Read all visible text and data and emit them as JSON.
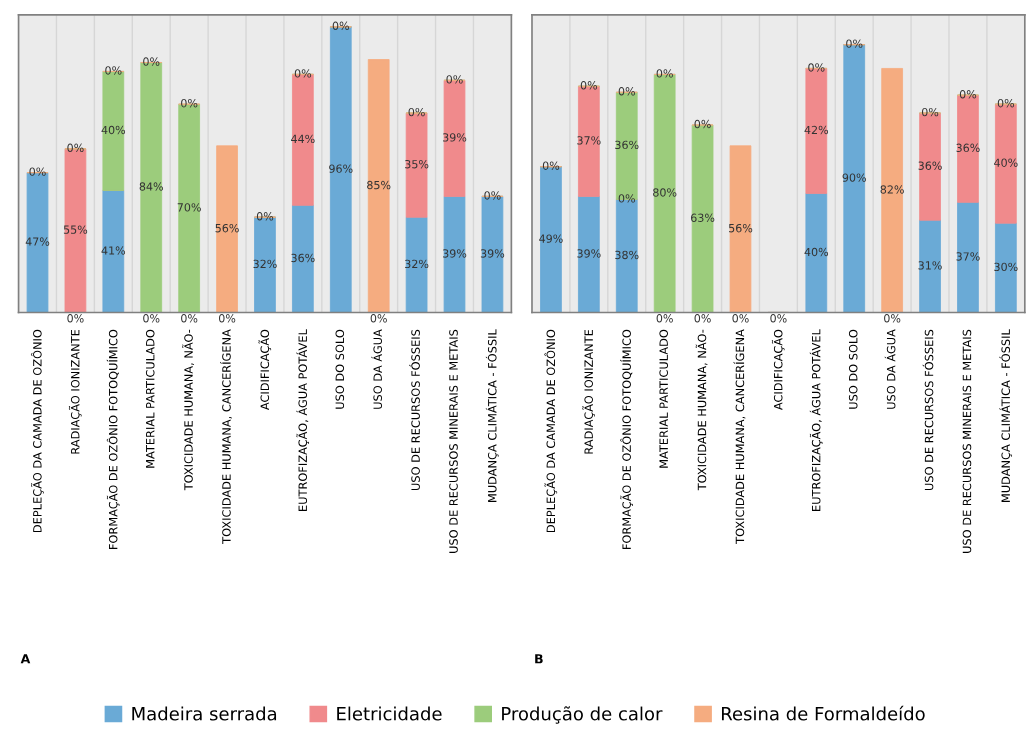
{
  "chart_data": [
    {
      "type": "bar",
      "stacked": true,
      "categories": [
        "DEPLEÇÃO DA CAMADA DE OZÔNIO",
        "RADIAÇÃO IONIZANTE",
        "FORMAÇÃO DE OZÔNIO FOTOQUÍMICO",
        "MATERIAL PARTICULADO",
        "TOXICIDADE HUMANA, NÃO-",
        "TOXICIDADE HUMANA, CANCERÍGENA",
        "ACIDIFICAÇÃO",
        "EUTROFIZAÇÃO, ÁGUA POTÁVEL",
        "USO DO SOLO",
        "USO DA ÁGUA",
        "USO DE RECURSOS FÓSSEIS",
        "USO DE RECURSOS MINERAIS E METAIS",
        "MUDANÇA CLIMÁTICA - FÓSSIL"
      ],
      "series": [
        {
          "name": "Madeira serrada",
          "color": "#6aaad6",
          "values": [
            47,
            0,
            41,
            0,
            0,
            0,
            32,
            36,
            96,
            0,
            32,
            39,
            39
          ],
          "value_labels": [
            "47%",
            "0%",
            "41%",
            "0%",
            "0%",
            "0%",
            "32%",
            "36%",
            "96%",
            "0%",
            "32%",
            "39%",
            "39%"
          ]
        },
        {
          "name": "Eletricidade",
          "color": "#f08a8c",
          "values": [
            0,
            55,
            0,
            0,
            0,
            0,
            0,
            44,
            0,
            0,
            35,
            39,
            0
          ],
          "value_labels": [
            null,
            "55%",
            null,
            null,
            null,
            null,
            null,
            "44%",
            null,
            null,
            "35%",
            "39%",
            null
          ]
        },
        {
          "name": "Produção de calor",
          "color": "#9ccc7c",
          "values": [
            0,
            0,
            40,
            84,
            70,
            0,
            0,
            0,
            0,
            0,
            0,
            0,
            0
          ],
          "value_labels": [
            null,
            null,
            "40%",
            "84%",
            "70%",
            null,
            null,
            null,
            null,
            null,
            null,
            null,
            null
          ]
        },
        {
          "name": "Resina de Formaldeído",
          "color": "#f5ac80",
          "values": [
            0,
            0,
            0,
            0,
            0,
            56,
            0,
            0,
            0,
            85,
            0,
            0,
            0
          ],
          "value_labels": [
            "0%",
            "0%",
            "0%",
            "0%",
            "0%",
            "56%",
            "0%",
            "0%",
            "0%",
            "85%",
            "0%",
            "0%",
            "0%"
          ]
        }
      ],
      "ylim": [
        0,
        100
      ],
      "tick_labels": "x",
      "grid": "x",
      "legend": "bottom",
      "annotations": [
        "A"
      ]
    },
    {
      "type": "bar",
      "stacked": true,
      "categories": [
        "DEPLEÇÃO DA CAMADA DE OZÔNIO",
        "RADIAÇÃO IONIZANTE",
        "FORMAÇÃO DE OZÔNIO FOTOQUÍMICO",
        "MATERIAL PARTICULADO",
        "TOXICIDADE HUMANA, NÃO-",
        "TOXICIDADE HUMANA, CANCERÍGENA",
        "ACIDIFICAÇÃO",
        "EUTROFIZAÇÃO, ÁGUA POTÁVEL",
        "USO DO SOLO",
        "USO DA ÁGUA",
        "USO DE RECURSOS FÓSSEIS",
        "USO DE RECURSOS MINERAIS E METAIS",
        "MUDANÇA CLIMÁTICA - FÓSSIL"
      ],
      "series": [
        {
          "color": "#6aaad6",
          "values": [
            49,
            39,
            38,
            0,
            0,
            0,
            0,
            40,
            90,
            0,
            31,
            37,
            30
          ],
          "value_labels": [
            "49%",
            "39%",
            "38%",
            "0%",
            "0%",
            "0%",
            "0%",
            "40%",
            "90%",
            "0%",
            "31%",
            "37%",
            "30%"
          ]
        },
        {
          "color": "#f08a8c",
          "values": [
            0,
            37,
            0,
            0,
            0,
            0,
            0,
            42,
            0,
            0,
            36,
            36,
            40
          ],
          "value_labels": [
            null,
            "37%",
            "0%",
            null,
            null,
            null,
            null,
            "42%",
            null,
            null,
            "36%",
            "36%",
            "40%"
          ]
        },
        {
          "color": "#9ccc7c",
          "values": [
            0,
            0,
            36,
            80,
            63,
            0,
            0,
            0,
            0,
            0,
            0,
            0,
            0
          ],
          "value_labels": [
            null,
            null,
            "36%",
            "80%",
            "63%",
            null,
            null,
            null,
            null,
            null,
            null,
            null,
            null
          ]
        },
        {
          "color": "#f5ac80",
          "values": [
            0,
            0,
            0,
            0,
            0,
            56,
            0,
            0,
            0,
            82,
            0,
            0,
            0
          ],
          "value_labels": [
            "0%",
            "0%",
            "0%",
            "0%",
            "0%",
            "56%",
            null,
            "0%",
            "0%",
            "82%",
            "0%",
            "0%",
            "0%"
          ]
        }
      ],
      "ylim": [
        0,
        100
      ],
      "tick_labels": "x",
      "grid": "x",
      "annotations": [
        "B"
      ]
    }
  ]
}
